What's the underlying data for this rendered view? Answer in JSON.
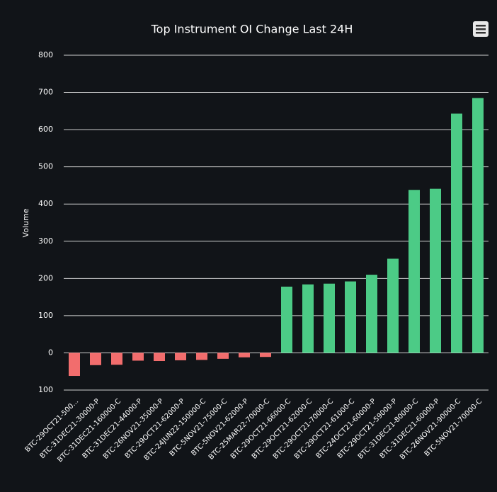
{
  "chart_data": {
    "type": "bar",
    "title": "Top Instrument OI Change Last 24H",
    "y_label": "Volume",
    "categories": [
      "BTC-29OCT21-500...",
      "BTC-31DEC21-30000-P",
      "BTC-31DEC21-160000-C",
      "BTC-31DEC21-44000-P",
      "BTC-26NOV21-35000-P",
      "BTC-29OCT21-62000-P",
      "BTC-24JUN22-150000-C",
      "BTC-5NOV21-75000-C",
      "BTC-5NOV21-62000-P",
      "BTC-25MAR22-70000-C",
      "BTC-29OCT21-66000-C",
      "BTC-29OCT21-62000-C",
      "BTC-29OCT21-70000-C",
      "BTC-29OCT21-61000-C",
      "BTC-24OCT21-60000-P",
      "BTC-29OCT21-59000-P",
      "BTC-31DEC21-80000-C",
      "BTC-31DEC21-60000-P",
      "BTC-26NOV21-90000-C",
      "BTC-5NOV21-70000-C"
    ],
    "values": [
      -62,
      -33,
      -32,
      -21,
      -22,
      -20,
      -19,
      -16,
      -12,
      -11,
      178,
      184,
      186,
      192,
      210,
      253,
      438,
      441,
      643,
      685
    ],
    "positive_color": "#4ccb86",
    "negative_color": "#f26d6d",
    "ylim": [
      -100,
      800
    ],
    "yticks": [
      {
        "value": -100,
        "label": "100"
      },
      0,
      100,
      200,
      300,
      400,
      500,
      600,
      700,
      800
    ],
    "grid": true
  }
}
